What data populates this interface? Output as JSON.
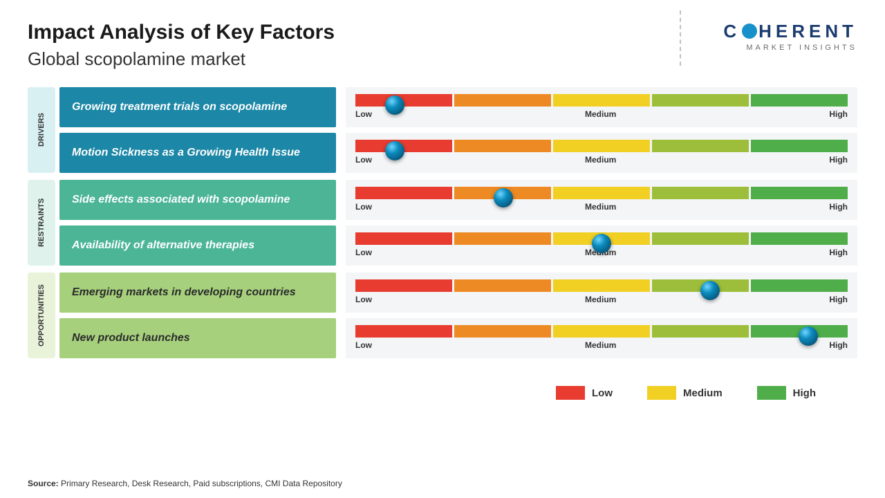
{
  "header": {
    "title": "Impact Analysis of Key Factors",
    "subtitle": "Global scopolamine market",
    "logo_main": "COHERENT",
    "logo_sub": "MARKET INSIGHTS"
  },
  "slider": {
    "segments": [
      {
        "color": "#e73c2f"
      },
      {
        "color": "#ee8a23"
      },
      {
        "color": "#f1cf23"
      },
      {
        "color": "#9cbe3a"
      },
      {
        "color": "#4fae4a"
      }
    ],
    "label_low": "Low",
    "label_medium": "Medium",
    "label_high": "High",
    "knob_color_outer": "#033b5a",
    "knob_color_mid": "#0c8bbd",
    "knob_color_inner": "#6fd6ff"
  },
  "categories": [
    {
      "name": "DRIVERS",
      "label_bg": "#d9f0f3",
      "box_bg": "#1c87a6",
      "box_text_color": "#ffffff",
      "rows": [
        {
          "label": "Growing treatment trials on scopolamine",
          "value_pct": 8
        },
        {
          "label": "Motion Sickness as a Growing Health Issue",
          "value_pct": 8
        }
      ]
    },
    {
      "name": "RESTRAINTS",
      "label_bg": "#dff3ec",
      "box_bg": "#4bb596",
      "box_text_color": "#ffffff",
      "rows": [
        {
          "label": "Side effects associated with scopolamine",
          "value_pct": 30
        },
        {
          "label": "Availability of alternative therapies",
          "value_pct": 50
        }
      ]
    },
    {
      "name": "OPPORTUNITIES",
      "label_bg": "#e9f3da",
      "box_bg": "#a6d07c",
      "box_text_color": "#2b2b2b",
      "rows": [
        {
          "label": "Emerging markets in developing countries",
          "value_pct": 72
        },
        {
          "label": "New product launches",
          "value_pct": 92
        }
      ]
    }
  ],
  "legend": {
    "items": [
      {
        "label": "Low",
        "color": "#e73c2f"
      },
      {
        "label": "Medium",
        "color": "#f1cf23"
      },
      {
        "label": "High",
        "color": "#4fae4a"
      }
    ]
  },
  "source": {
    "prefix": "Source:",
    "text": "Primary Research, Desk Research, Paid subscriptions, CMI Data Repository"
  }
}
